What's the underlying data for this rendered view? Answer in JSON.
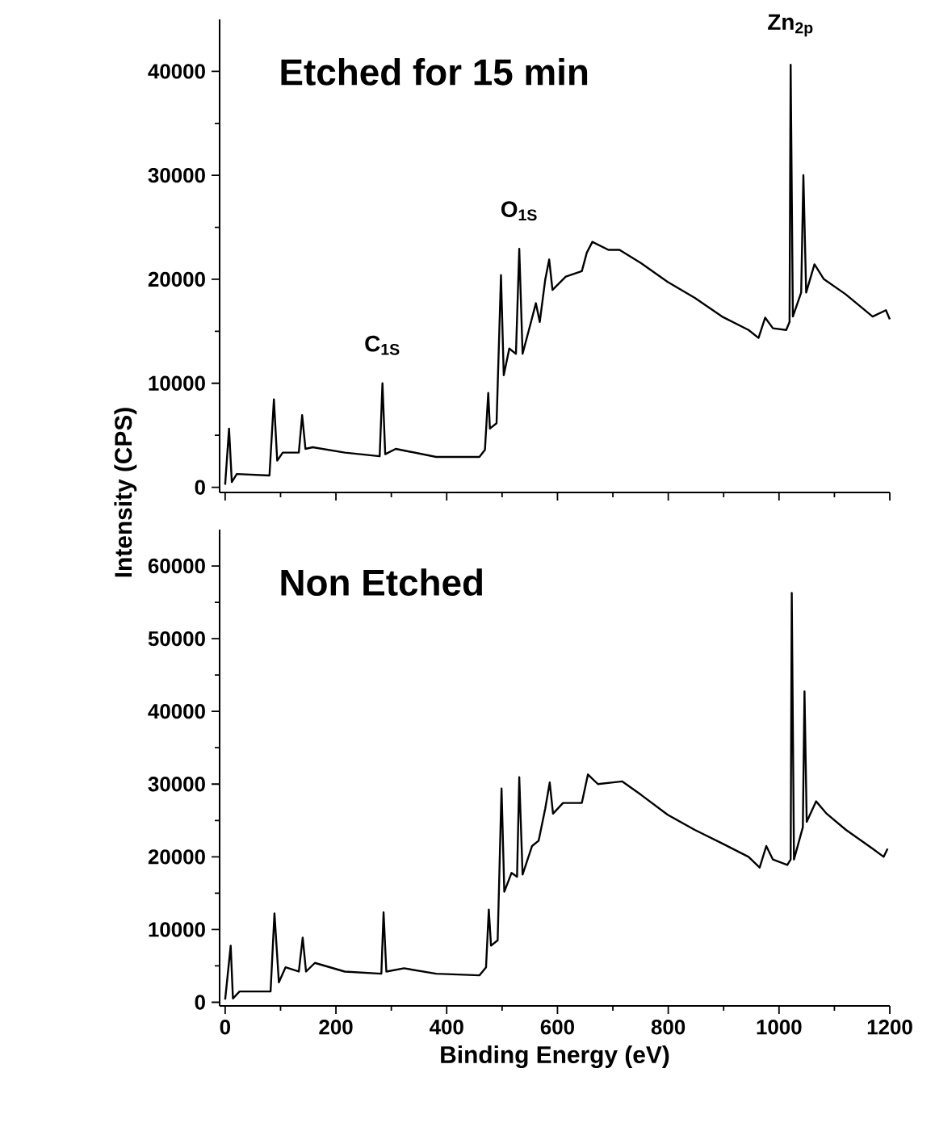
{
  "chart_data": [
    {
      "type": "line",
      "color": "#000000",
      "xlim": [
        -10,
        1200
      ],
      "ylim": [
        -500,
        45000
      ],
      "xticks": [
        0,
        200,
        400,
        600,
        800,
        1000,
        1200
      ],
      "yticks": [
        0,
        10000,
        20000,
        30000,
        40000
      ],
      "tick_labels": "y",
      "ylabel": "Intensity (CPS)",
      "annotations": [
        "Etched for 15 min",
        {
          "text": "C$_{1S}$",
          "x": 284,
          "y": 10000
        },
        {
          "text": "O$_{1S}$",
          "x": 531,
          "y": 22930
        },
        {
          "text": "Zn$_{2p}$",
          "x": 1021,
          "y": 40630
        }
      ],
      "x": [
        0,
        7,
        12,
        21,
        80,
        88,
        94,
        104,
        133,
        139,
        145,
        158,
        216,
        279,
        284,
        289,
        308,
        381,
        459,
        469,
        475,
        478,
        490,
        498,
        503,
        513,
        525,
        531,
        537,
        551,
        561,
        568,
        578,
        585,
        591,
        615,
        644,
        653,
        663,
        692,
        712,
        751,
        799,
        848,
        897,
        945,
        963,
        975,
        989,
        1013,
        1019,
        1021,
        1025,
        1040,
        1044,
        1049,
        1064,
        1081,
        1120,
        1169,
        1193,
        1200
      ],
      "values": [
        250,
        5640,
        500,
        1280,
        1130,
        8460,
        2560,
        3330,
        3330,
        6930,
        3690,
        3850,
        3330,
        2980,
        10000,
        3180,
        3690,
        2920,
        2920,
        3590,
        9080,
        5640,
        6160,
        20400,
        10770,
        13340,
        12830,
        22930,
        12830,
        15650,
        17700,
        15900,
        20000,
        21900,
        18980,
        20260,
        20780,
        22570,
        23600,
        22830,
        22830,
        21550,
        19750,
        18210,
        16420,
        15130,
        14360,
        16310,
        15290,
        15130,
        15900,
        40630,
        16420,
        18730,
        30010,
        18730,
        21440,
        20010,
        18570,
        16420,
        17030,
        16160
      ]
    },
    {
      "type": "line",
      "color": "#000000",
      "xlim": [
        -10,
        1200
      ],
      "ylim": [
        -500,
        65000
      ],
      "xticks": [
        0,
        200,
        400,
        600,
        800,
        1000,
        1200
      ],
      "yticks": [
        0,
        10000,
        20000,
        30000,
        40000,
        50000,
        60000
      ],
      "xlabel": "Binding Energy (eV)",
      "annotations": [
        "Non Etched"
      ],
      "x": [
        0,
        10,
        14,
        26,
        82,
        89,
        97,
        109,
        133,
        140,
        146,
        162,
        216,
        282,
        286,
        291,
        323,
        381,
        459,
        471,
        476,
        480,
        492,
        499,
        504,
        517,
        527,
        531,
        537,
        554,
        566,
        578,
        586,
        592,
        610,
        644,
        655,
        673,
        717,
        751,
        799,
        848,
        897,
        945,
        965,
        977,
        989,
        1015,
        1021,
        1023,
        1027,
        1043,
        1046,
        1050,
        1067,
        1086,
        1121,
        1169,
        1189,
        1196
      ],
      "values": [
        370,
        7780,
        520,
        1480,
        1480,
        12220,
        2740,
        4810,
        4220,
        8890,
        4220,
        5410,
        4220,
        3930,
        12370,
        4220,
        4670,
        3930,
        3700,
        4810,
        12740,
        7780,
        8520,
        29400,
        15190,
        17780,
        17260,
        30960,
        17560,
        21480,
        22220,
        26670,
        30220,
        25930,
        27410,
        27410,
        31330,
        30000,
        30370,
        28520,
        25780,
        23700,
        21850,
        20000,
        18520,
        21480,
        19630,
        18890,
        19630,
        56300,
        19630,
        24070,
        42740,
        24810,
        27630,
        25930,
        23700,
        21110,
        20000,
        21110
      ]
    }
  ]
}
